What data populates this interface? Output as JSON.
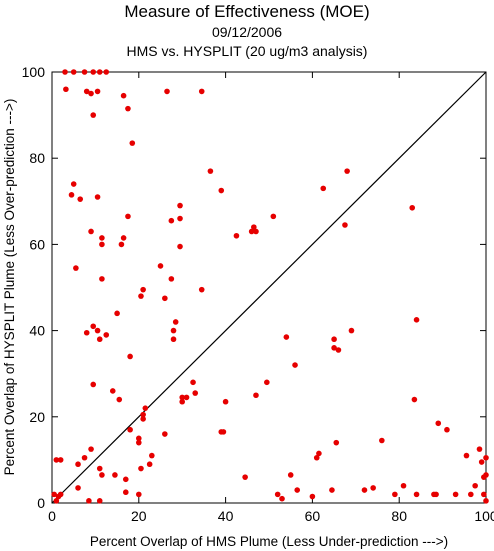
{
  "chart_data": {
    "type": "scatter",
    "title": "Measure of Effectiveness (MOE)",
    "subtitle": "09/12/2006",
    "subtitle2": "HMS vs. HYSPLIT  (20 ug/m3 analysis)",
    "xlabel": "Percent Overlap of HMS Plume (Less Under-prediction --->)",
    "ylabel": "Percent Overlap of HYSPLIT Plume (Less Over-prediction --->)",
    "xlim": [
      0,
      100
    ],
    "ylim": [
      0,
      100
    ],
    "xticks": [
      0,
      20,
      40,
      60,
      80,
      100
    ],
    "yticks": [
      0,
      20,
      40,
      60,
      80,
      100
    ],
    "grid": false,
    "diagonal_line": true,
    "point_color": "#e60000",
    "points": [
      [
        3,
        100
      ],
      [
        5,
        100
      ],
      [
        7.5,
        100
      ],
      [
        9.5,
        100
      ],
      [
        11,
        100
      ],
      [
        12.5,
        100
      ],
      [
        3.2,
        96
      ],
      [
        8,
        95.5
      ],
      [
        9,
        95
      ],
      [
        10.5,
        95.5
      ],
      [
        16.5,
        94.5
      ],
      [
        26.5,
        95.5
      ],
      [
        34.5,
        95.5
      ],
      [
        9.5,
        90
      ],
      [
        17.5,
        91.5
      ],
      [
        18.5,
        83.5
      ],
      [
        36.5,
        77
      ],
      [
        68,
        77
      ],
      [
        39,
        72.5
      ],
      [
        62.5,
        73
      ],
      [
        5,
        74
      ],
      [
        4.5,
        71.5
      ],
      [
        6.5,
        70.5
      ],
      [
        10.5,
        71
      ],
      [
        17.5,
        66.5
      ],
      [
        29.5,
        69
      ],
      [
        29.5,
        66
      ],
      [
        27.5,
        65.5
      ],
      [
        51,
        66.5
      ],
      [
        67.5,
        64.5
      ],
      [
        83,
        68.5
      ],
      [
        9,
        63
      ],
      [
        11.5,
        61.5
      ],
      [
        11.5,
        60
      ],
      [
        16.5,
        61.5
      ],
      [
        16,
        60
      ],
      [
        25,
        55
      ],
      [
        27.5,
        52
      ],
      [
        29.5,
        59.5
      ],
      [
        42.5,
        62
      ],
      [
        46.5,
        64
      ],
      [
        47,
        63
      ],
      [
        46,
        63
      ],
      [
        5.5,
        54.5
      ],
      [
        11.5,
        52
      ],
      [
        15,
        44
      ],
      [
        20.5,
        48
      ],
      [
        21,
        49.5
      ],
      [
        26,
        47.5
      ],
      [
        34.5,
        49.5
      ],
      [
        8,
        39.5
      ],
      [
        9.5,
        41
      ],
      [
        10.5,
        40
      ],
      [
        11,
        38
      ],
      [
        12.5,
        39
      ],
      [
        18,
        34
      ],
      [
        28.5,
        42
      ],
      [
        28,
        40
      ],
      [
        28,
        38
      ],
      [
        31,
        24.5
      ],
      [
        32.5,
        28
      ],
      [
        33,
        25.5
      ],
      [
        30,
        23.5
      ],
      [
        30,
        24.5
      ],
      [
        40,
        23.5
      ],
      [
        54,
        38.5
      ],
      [
        65,
        38
      ],
      [
        65,
        36
      ],
      [
        66,
        35.5
      ],
      [
        69,
        40
      ],
      [
        56,
        32
      ],
      [
        84,
        42.5
      ],
      [
        9.5,
        27.5
      ],
      [
        14,
        26
      ],
      [
        15.5,
        24
      ],
      [
        18,
        17
      ],
      [
        20,
        15
      ],
      [
        20,
        14
      ],
      [
        21,
        20.5
      ],
      [
        21.5,
        22
      ],
      [
        21,
        19.5
      ],
      [
        26,
        16
      ],
      [
        39,
        16.5
      ],
      [
        39.5,
        16.5
      ],
      [
        47,
        25
      ],
      [
        49.5,
        28
      ],
      [
        83.5,
        24
      ],
      [
        1,
        10
      ],
      [
        2,
        10
      ],
      [
        6,
        9
      ],
      [
        7.5,
        10.5
      ],
      [
        9,
        12.5
      ],
      [
        11,
        8
      ],
      [
        11.5,
        6.5
      ],
      [
        14.5,
        6.5
      ],
      [
        17,
        5.5
      ],
      [
        17,
        2.5
      ],
      [
        20,
        2
      ],
      [
        23,
        11
      ],
      [
        22.5,
        9
      ],
      [
        20.5,
        8
      ],
      [
        0.5,
        2
      ],
      [
        1,
        0.5
      ],
      [
        1.5,
        1.5
      ],
      [
        2,
        2
      ],
      [
        6,
        3.5
      ],
      [
        8.5,
        0.5
      ],
      [
        11,
        0.5
      ],
      [
        44.5,
        6
      ],
      [
        52,
        2
      ],
      [
        53,
        1
      ],
      [
        55,
        6.5
      ],
      [
        56.5,
        3
      ],
      [
        60,
        1.5
      ],
      [
        61,
        10.5
      ],
      [
        61.5,
        11.5
      ],
      [
        64.5,
        3
      ],
      [
        65.5,
        14
      ],
      [
        72,
        3
      ],
      [
        74,
        3.5
      ],
      [
        76,
        14.5
      ],
      [
        79,
        2
      ],
      [
        81,
        4
      ],
      [
        84,
        2
      ],
      [
        88,
        2
      ],
      [
        88.5,
        2
      ],
      [
        89,
        18.5
      ],
      [
        91,
        17
      ],
      [
        93,
        2
      ],
      [
        95.5,
        11
      ],
      [
        96.5,
        2
      ],
      [
        97.5,
        4
      ],
      [
        98.5,
        12.5
      ],
      [
        99,
        9.5
      ],
      [
        99.5,
        6
      ],
      [
        100,
        10.5
      ],
      [
        100,
        6.5
      ],
      [
        99.5,
        2
      ],
      [
        100,
        0.5
      ]
    ]
  }
}
